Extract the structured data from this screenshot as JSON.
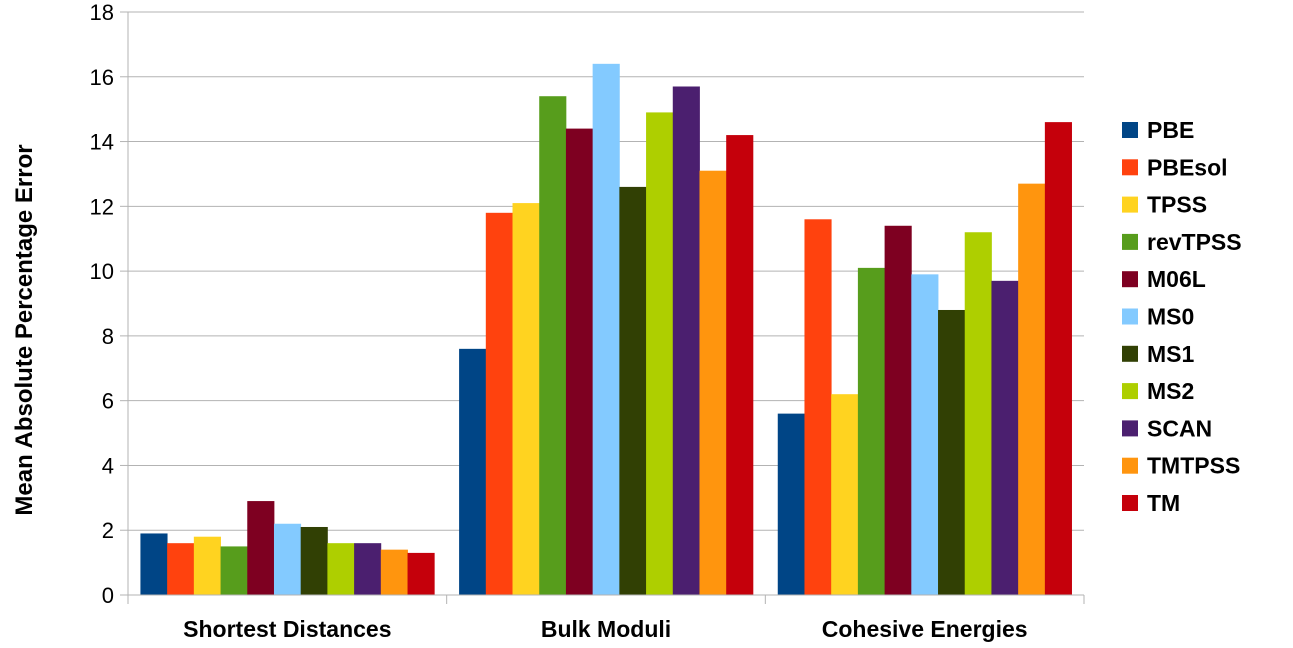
{
  "chart_data": {
    "type": "bar",
    "title": "",
    "xlabel": "",
    "ylabel": "Mean Absolute Percentage Error",
    "ylim": [
      0,
      18
    ],
    "yticks": [
      0,
      2,
      4,
      6,
      8,
      10,
      12,
      14,
      16,
      18
    ],
    "grid": true,
    "legend_position": "right",
    "categories": [
      "Shortest Distances",
      "Bulk Moduli",
      "Cohesive Energies"
    ],
    "series": [
      {
        "name": "PBE",
        "color": "#004586",
        "values": [
          1.9,
          7.6,
          5.6
        ]
      },
      {
        "name": "PBEsol",
        "color": "#ff420e",
        "values": [
          1.6,
          11.8,
          11.6
        ]
      },
      {
        "name": "TPSS",
        "color": "#ffd320",
        "values": [
          1.8,
          12.1,
          6.2
        ]
      },
      {
        "name": "revTPSS",
        "color": "#579d1c",
        "values": [
          1.5,
          15.4,
          10.1
        ]
      },
      {
        "name": "M06L",
        "color": "#7e0021",
        "values": [
          2.9,
          14.4,
          11.4
        ]
      },
      {
        "name": "MS0",
        "color": "#83caff",
        "values": [
          2.2,
          16.4,
          9.9
        ]
      },
      {
        "name": "MS1",
        "color": "#314004",
        "values": [
          2.1,
          12.6,
          8.8
        ]
      },
      {
        "name": "MS2",
        "color": "#aecf00",
        "values": [
          1.6,
          14.9,
          11.2
        ]
      },
      {
        "name": "SCAN",
        "color": "#4b1f6f",
        "values": [
          1.6,
          15.7,
          9.7
        ]
      },
      {
        "name": "TMTPSS",
        "color": "#ff950e",
        "values": [
          1.4,
          13.1,
          12.7
        ]
      },
      {
        "name": "TM",
        "color": "#c5000b",
        "values": [
          1.3,
          14.2,
          14.6
        ]
      }
    ]
  }
}
